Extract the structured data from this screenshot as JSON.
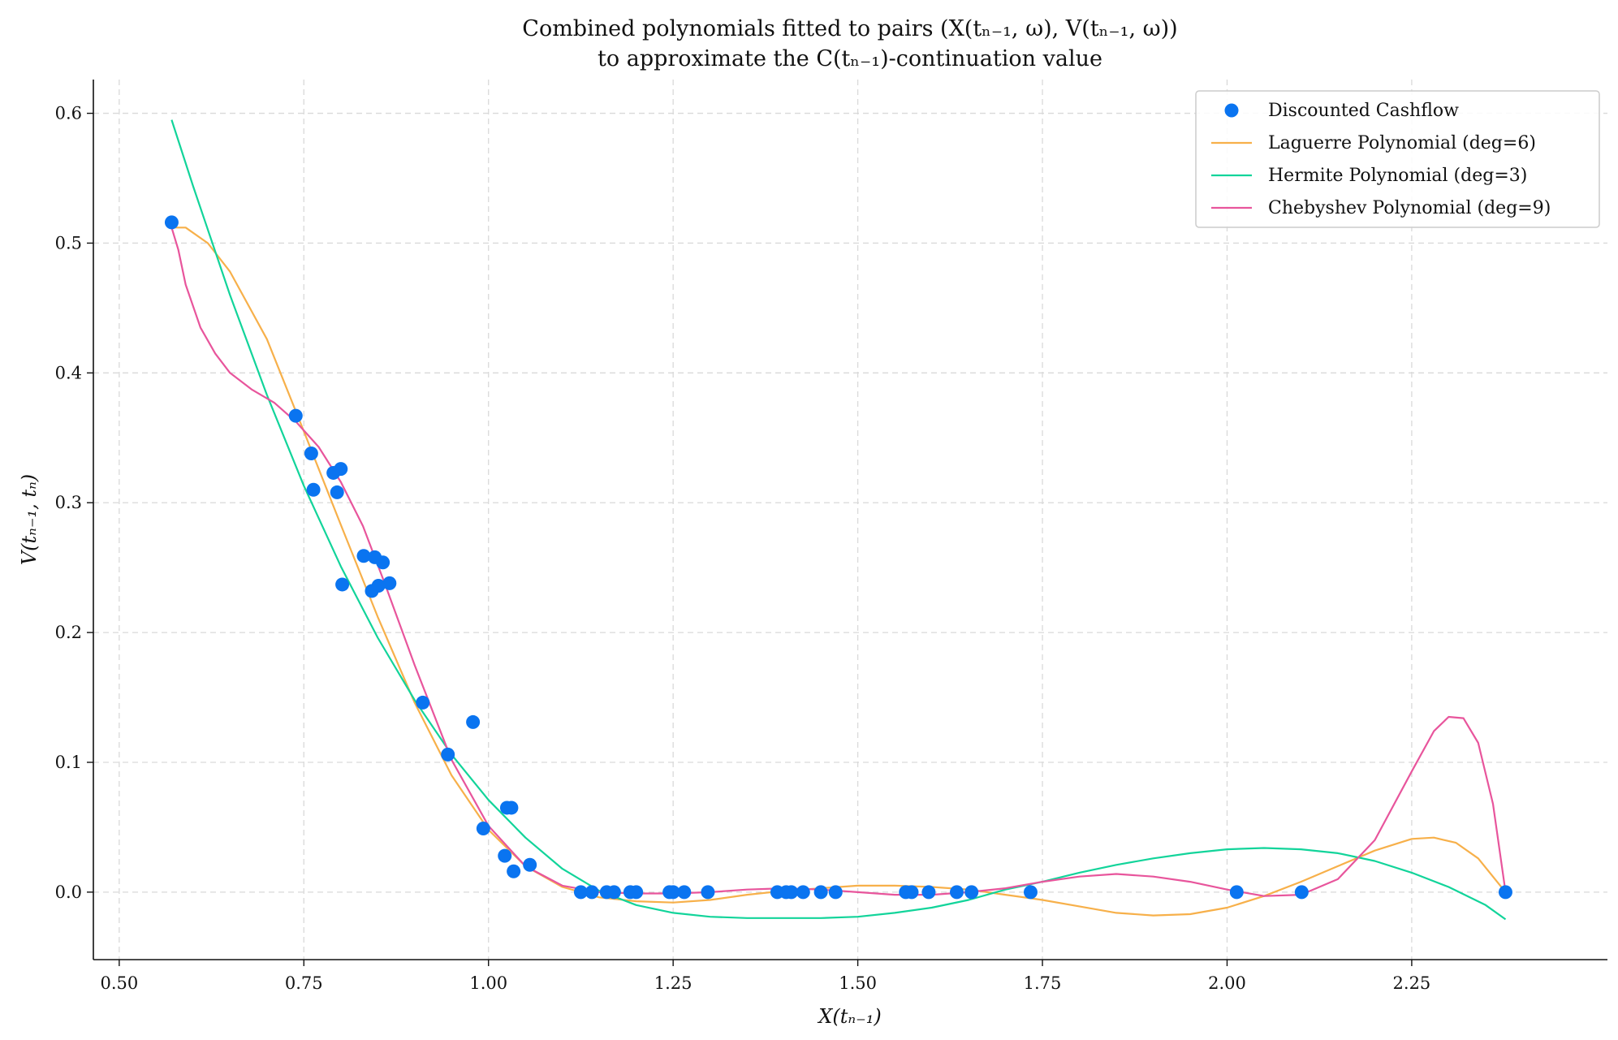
{
  "chart_data": {
    "type": "scatter",
    "title_lines": [
      "Combined polynomials fitted to pairs (X(tₙ₋₁, ω), V(tₙ₋₁, ω))",
      "to approximate the C(tₙ₋₁)-continuation value"
    ],
    "xlabel": "X(tₙ₋₁)",
    "ylabel": "V(tₙ₋₁, tₙ)",
    "xlim": [
      0.465,
      2.515
    ],
    "ylim": [
      -0.052,
      0.626
    ],
    "x_ticks": [
      0.5,
      0.75,
      1.0,
      1.25,
      1.5,
      1.75,
      2.0,
      2.25
    ],
    "x_tick_labels": [
      "0.50",
      "0.75",
      "1.00",
      "1.25",
      "1.50",
      "1.75",
      "2.00",
      "2.25"
    ],
    "y_ticks": [
      0.0,
      0.1,
      0.2,
      0.3,
      0.4,
      0.5,
      0.6
    ],
    "y_tick_labels": [
      "0.0",
      "0.1",
      "0.2",
      "0.3",
      "0.4",
      "0.5",
      "0.6"
    ],
    "grid": true,
    "legend_position": "top-right",
    "series": [
      {
        "name": "Discounted Cashflow",
        "kind": "scatter",
        "color": "#0a74f0",
        "points": [
          [
            0.571,
            0.516
          ],
          [
            0.739,
            0.367
          ],
          [
            0.76,
            0.338
          ],
          [
            0.763,
            0.31
          ],
          [
            0.79,
            0.323
          ],
          [
            0.795,
            0.308
          ],
          [
            0.8,
            0.326
          ],
          [
            0.802,
            0.237
          ],
          [
            0.831,
            0.259
          ],
          [
            0.842,
            0.232
          ],
          [
            0.846,
            0.258
          ],
          [
            0.851,
            0.236
          ],
          [
            0.857,
            0.254
          ],
          [
            0.866,
            0.238
          ],
          [
            0.911,
            0.146
          ],
          [
            0.945,
            0.106
          ],
          [
            0.979,
            0.131
          ],
          [
            0.993,
            0.049
          ],
          [
            1.022,
            0.028
          ],
          [
            1.025,
            0.065
          ],
          [
            1.031,
            0.065
          ],
          [
            1.034,
            0.016
          ],
          [
            1.056,
            0.021
          ],
          [
            1.125,
            0.0
          ],
          [
            1.14,
            0.0
          ],
          [
            1.16,
            0.0
          ],
          [
            1.17,
            0.0
          ],
          [
            1.192,
            0.0
          ],
          [
            1.2,
            0.0
          ],
          [
            1.245,
            0.0
          ],
          [
            1.25,
            0.0
          ],
          [
            1.265,
            0.0
          ],
          [
            1.297,
            0.0
          ],
          [
            1.391,
            0.0
          ],
          [
            1.403,
            0.0
          ],
          [
            1.41,
            0.0
          ],
          [
            1.426,
            0.0
          ],
          [
            1.45,
            0.0
          ],
          [
            1.47,
            0.0
          ],
          [
            1.565,
            0.0
          ],
          [
            1.573,
            0.0
          ],
          [
            1.596,
            0.0
          ],
          [
            1.634,
            0.0
          ],
          [
            1.654,
            0.0
          ],
          [
            1.734,
            0.0
          ],
          [
            2.013,
            0.0
          ],
          [
            2.101,
            0.0
          ],
          [
            2.377,
            0.0
          ]
        ]
      },
      {
        "name": "Laguerre Polynomial (deg=6)",
        "kind": "line",
        "color": "#f7b04a",
        "points": [
          [
            0.571,
            0.512
          ],
          [
            0.59,
            0.512
          ],
          [
            0.62,
            0.5
          ],
          [
            0.65,
            0.478
          ],
          [
            0.7,
            0.426
          ],
          [
            0.75,
            0.355
          ],
          [
            0.8,
            0.283
          ],
          [
            0.85,
            0.212
          ],
          [
            0.9,
            0.146
          ],
          [
            0.95,
            0.09
          ],
          [
            1.0,
            0.048
          ],
          [
            1.05,
            0.02
          ],
          [
            1.1,
            0.004
          ],
          [
            1.15,
            -0.004
          ],
          [
            1.2,
            -0.007
          ],
          [
            1.25,
            -0.008
          ],
          [
            1.3,
            -0.006
          ],
          [
            1.35,
            -0.002
          ],
          [
            1.4,
            0.001
          ],
          [
            1.45,
            0.003
          ],
          [
            1.5,
            0.005
          ],
          [
            1.55,
            0.005
          ],
          [
            1.6,
            0.004
          ],
          [
            1.65,
            0.002
          ],
          [
            1.7,
            -0.002
          ],
          [
            1.75,
            -0.006
          ],
          [
            1.8,
            -0.011
          ],
          [
            1.85,
            -0.016
          ],
          [
            1.9,
            -0.018
          ],
          [
            1.95,
            -0.017
          ],
          [
            2.0,
            -0.012
          ],
          [
            2.05,
            -0.003
          ],
          [
            2.1,
            0.008
          ],
          [
            2.15,
            0.02
          ],
          [
            2.2,
            0.032
          ],
          [
            2.25,
            0.041
          ],
          [
            2.28,
            0.042
          ],
          [
            2.31,
            0.038
          ],
          [
            2.34,
            0.026
          ],
          [
            2.377,
            0.0
          ]
        ]
      },
      {
        "name": "Hermite Polynomial (deg=3)",
        "kind": "line",
        "color": "#12d49a",
        "points": [
          [
            0.571,
            0.595
          ],
          [
            0.6,
            0.544
          ],
          [
            0.65,
            0.46
          ],
          [
            0.7,
            0.383
          ],
          [
            0.75,
            0.313
          ],
          [
            0.8,
            0.251
          ],
          [
            0.85,
            0.196
          ],
          [
            0.9,
            0.148
          ],
          [
            0.95,
            0.106
          ],
          [
            1.0,
            0.071
          ],
          [
            1.05,
            0.042
          ],
          [
            1.1,
            0.018
          ],
          [
            1.15,
            0.001
          ],
          [
            1.2,
            -0.01
          ],
          [
            1.25,
            -0.016
          ],
          [
            1.3,
            -0.019
          ],
          [
            1.35,
            -0.02
          ],
          [
            1.4,
            -0.02
          ],
          [
            1.45,
            -0.02
          ],
          [
            1.5,
            -0.019
          ],
          [
            1.55,
            -0.016
          ],
          [
            1.6,
            -0.012
          ],
          [
            1.65,
            -0.006
          ],
          [
            1.7,
            0.002
          ],
          [
            1.75,
            0.008
          ],
          [
            1.8,
            0.015
          ],
          [
            1.85,
            0.021
          ],
          [
            1.9,
            0.026
          ],
          [
            1.95,
            0.03
          ],
          [
            2.0,
            0.033
          ],
          [
            2.05,
            0.034
          ],
          [
            2.1,
            0.033
          ],
          [
            2.15,
            0.03
          ],
          [
            2.2,
            0.024
          ],
          [
            2.25,
            0.015
          ],
          [
            2.3,
            0.004
          ],
          [
            2.35,
            -0.01
          ],
          [
            2.377,
            -0.021
          ]
        ]
      },
      {
        "name": "Chebyshev Polynomial (deg=9)",
        "kind": "line",
        "color": "#e8559c",
        "points": [
          [
            0.571,
            0.512
          ],
          [
            0.58,
            0.495
          ],
          [
            0.59,
            0.468
          ],
          [
            0.61,
            0.435
          ],
          [
            0.63,
            0.415
          ],
          [
            0.65,
            0.4
          ],
          [
            0.68,
            0.387
          ],
          [
            0.71,
            0.377
          ],
          [
            0.74,
            0.362
          ],
          [
            0.77,
            0.343
          ],
          [
            0.8,
            0.316
          ],
          [
            0.83,
            0.282
          ],
          [
            0.86,
            0.237
          ],
          [
            0.9,
            0.175
          ],
          [
            0.95,
            0.102
          ],
          [
            1.0,
            0.051
          ],
          [
            1.05,
            0.02
          ],
          [
            1.1,
            0.005
          ],
          [
            1.15,
            0.0
          ],
          [
            1.2,
            -0.001
          ],
          [
            1.25,
            -0.001
          ],
          [
            1.3,
            0.0
          ],
          [
            1.35,
            0.002
          ],
          [
            1.4,
            0.003
          ],
          [
            1.45,
            0.002
          ],
          [
            1.5,
            0.0
          ],
          [
            1.55,
            -0.002
          ],
          [
            1.6,
            -0.002
          ],
          [
            1.65,
            0.0
          ],
          [
            1.7,
            0.003
          ],
          [
            1.75,
            0.008
          ],
          [
            1.8,
            0.012
          ],
          [
            1.85,
            0.014
          ],
          [
            1.9,
            0.012
          ],
          [
            1.95,
            0.008
          ],
          [
            2.0,
            0.002
          ],
          [
            2.05,
            -0.003
          ],
          [
            2.1,
            -0.002
          ],
          [
            2.15,
            0.01
          ],
          [
            2.2,
            0.04
          ],
          [
            2.25,
            0.093
          ],
          [
            2.28,
            0.124
          ],
          [
            2.3,
            0.135
          ],
          [
            2.32,
            0.134
          ],
          [
            2.34,
            0.115
          ],
          [
            2.36,
            0.068
          ],
          [
            2.377,
            0.0
          ]
        ]
      }
    ]
  }
}
